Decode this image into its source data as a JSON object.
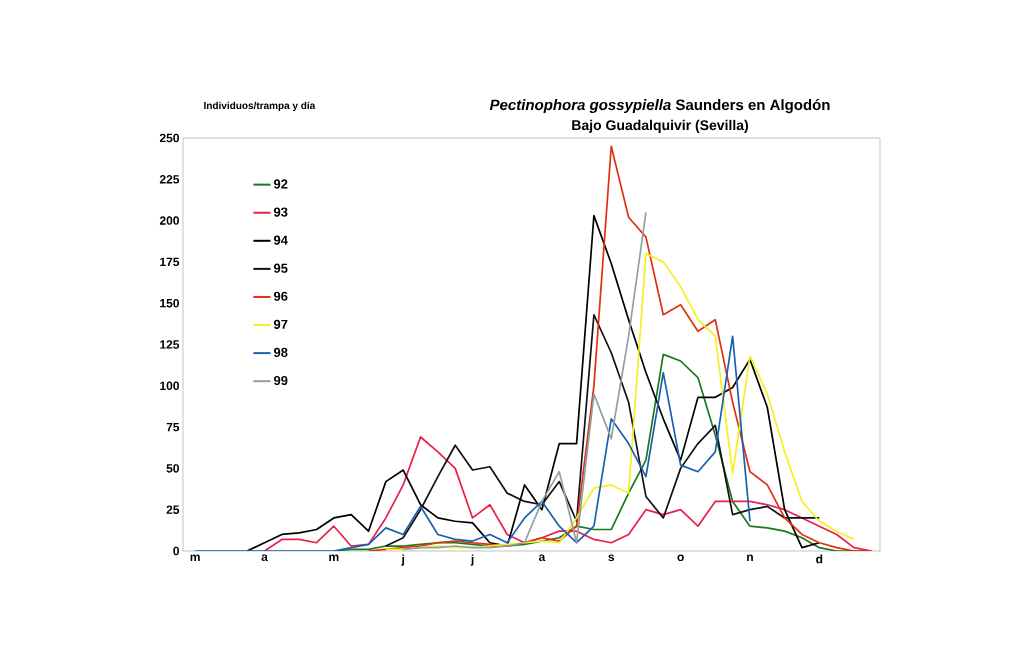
{
  "chart_data": {
    "type": "line",
    "title": "*Pectinophora gossypiella* Saunders en Algodón",
    "subtitle": "Bajo Guadalquivir (Sevilla)",
    "ylabel": "Individuos/trampa y día",
    "categories": [
      "m",
      null,
      null,
      null,
      "a",
      null,
      null,
      null,
      "m",
      null,
      null,
      null,
      "j",
      null,
      null,
      null,
      "j",
      null,
      null,
      null,
      "a",
      null,
      null,
      null,
      "s",
      null,
      null,
      null,
      "o",
      null,
      null,
      null,
      "n",
      null,
      null,
      null,
      "d",
      null,
      null,
      null
    ],
    "ylim": [
      0,
      250
    ],
    "yticks": [
      0,
      25,
      50,
      75,
      100,
      125,
      150,
      175,
      200,
      225,
      250
    ],
    "grid": false,
    "legend": "top left",
    "marker": "none",
    "line_style": "solid",
    "series": [
      {
        "name": "92",
        "color": "#1a7a1a",
        "values": [
          null,
          null,
          null,
          null,
          null,
          null,
          null,
          null,
          0,
          1,
          1,
          3,
          3,
          4,
          5,
          5,
          4,
          3,
          3,
          4,
          6,
          8,
          15,
          13,
          13,
          35,
          55,
          119,
          115,
          105,
          70,
          30,
          15,
          14,
          12,
          8,
          2,
          0,
          0,
          0
        ]
      },
      {
        "name": "93",
        "color": "#e8204a",
        "values": [
          null,
          null,
          null,
          null,
          0,
          7,
          7,
          5,
          15,
          3,
          4,
          20,
          40,
          69,
          60,
          50,
          20,
          28,
          10,
          5,
          8,
          12,
          12,
          7,
          5,
          10,
          25,
          22,
          25,
          15,
          30,
          30,
          30,
          28,
          25,
          20,
          15,
          10,
          2,
          0
        ]
      },
      {
        "name": "94",
        "color": "#000000",
        "values": [
          null,
          null,
          null,
          0,
          5,
          10,
          11,
          13,
          20,
          22,
          12,
          42,
          49,
          28,
          20,
          18,
          17,
          5,
          3,
          40,
          25,
          65,
          65,
          203,
          174,
          140,
          108,
          80,
          55,
          93,
          93,
          99,
          116,
          87,
          25,
          2,
          5,
          null,
          null,
          null
        ]
      },
      {
        "name": "95",
        "color": "#10101a",
        "values": [
          null,
          null,
          null,
          null,
          null,
          null,
          null,
          null,
          null,
          null,
          null,
          3,
          8,
          25,
          45,
          64,
          49,
          51,
          35,
          30,
          28,
          42,
          18,
          143,
          120,
          90,
          33,
          20,
          50,
          65,
          76,
          22,
          25,
          27,
          20,
          20,
          20,
          null,
          null,
          null
        ]
      },
      {
        "name": "96",
        "color": "#e03010",
        "values": [
          null,
          null,
          null,
          null,
          null,
          null,
          null,
          null,
          null,
          null,
          0,
          1,
          2,
          3,
          5,
          6,
          5,
          4,
          3,
          5,
          8,
          6,
          15,
          100,
          245,
          202,
          190,
          143,
          149,
          133,
          140,
          90,
          48,
          40,
          20,
          10,
          5,
          2,
          0,
          0
        ]
      },
      {
        "name": "97",
        "color": "#f5f020",
        "values": [
          null,
          null,
          null,
          null,
          null,
          null,
          null,
          null,
          null,
          null,
          null,
          1,
          1,
          2,
          3,
          2,
          2,
          3,
          4,
          5,
          6,
          5,
          20,
          38,
          40,
          35,
          180,
          175,
          160,
          140,
          130,
          47,
          118,
          95,
          60,
          30,
          18,
          12,
          7,
          null
        ]
      },
      {
        "name": "98",
        "color": "#1a60b0",
        "values": [
          0,
          0,
          0,
          0,
          0,
          0,
          0,
          0,
          0,
          2,
          4,
          14,
          10,
          27,
          10,
          7,
          6,
          10,
          5,
          20,
          30,
          15,
          5,
          15,
          80,
          65,
          45,
          108,
          52,
          48,
          60,
          130,
          18,
          null,
          null,
          null,
          null,
          null,
          null,
          null
        ]
      },
      {
        "name": "99",
        "color": "#90a0a0",
        "values": [
          null,
          null,
          null,
          null,
          null,
          null,
          null,
          null,
          null,
          null,
          null,
          null,
          1,
          2,
          2,
          3,
          2,
          2,
          3,
          5,
          30,
          48,
          5,
          95,
          68,
          130,
          205,
          null,
          null,
          null,
          null,
          null,
          null,
          null,
          null,
          null,
          null,
          null,
          null,
          null
        ]
      }
    ]
  }
}
